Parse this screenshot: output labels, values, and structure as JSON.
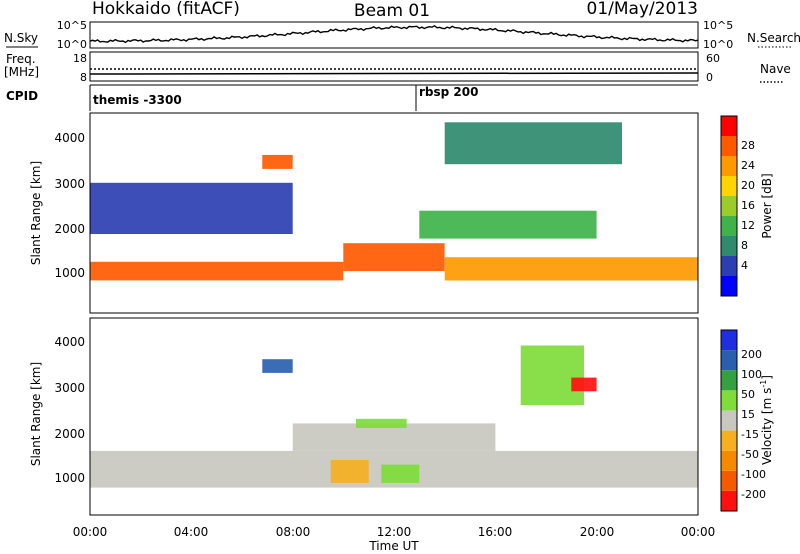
{
  "header": {
    "radar": "Hokkaido (fitACF)",
    "beam": "Beam 01",
    "date": "01/May/2013"
  },
  "side_labels": {
    "nsky": "N.Sky",
    "nsearch": "N.Search",
    "freq_line1": "Freq.",
    "freq_line2": "[MHz]",
    "nave": "Nave",
    "cpid": "CPID"
  },
  "noise_panel": {
    "left_ticks": [
      "10^5",
      "10^0"
    ],
    "right_ticks": [
      "10^5",
      "10^0"
    ]
  },
  "freq_panel": {
    "left_ticks": [
      "18",
      "8"
    ],
    "right_ticks": [
      "60",
      "0"
    ]
  },
  "cpid_panel": {
    "labels": [
      "themis -3300",
      "rbsp 200"
    ],
    "label_hours": [
      0,
      13.1
    ]
  },
  "power_panel": {
    "ylabel": "Slant Range [km]",
    "yticks": [
      "4000",
      "3000",
      "2000",
      "1000"
    ],
    "colorbar_label": "Power [dB]",
    "colorbar_ticks": [
      "28",
      "24",
      "20",
      "16",
      "12",
      "8",
      "4"
    ],
    "colorbar_colors": [
      "#0000ff",
      "#2c3fb2",
      "#2f8a6e",
      "#3fb34a",
      "#9ccc2c",
      "#ffd400",
      "#ff9900",
      "#ff5a00",
      "#ff0000"
    ]
  },
  "velocity_panel": {
    "ylabel": "Slant Range [km]",
    "yticks": [
      "4000",
      "3000",
      "2000",
      "1000"
    ],
    "colorbar_label": "Velocity [m s",
    "colorbar_label_exp": "-1",
    "colorbar_label_end": "]",
    "colorbar_ticks": [
      "200",
      "100",
      "50",
      "15",
      "-15",
      "-50",
      "-100",
      "-200"
    ],
    "colorbar_colors": [
      "#1f2ee0",
      "#2a5fb0",
      "#35a040",
      "#7fdc3a",
      "#c8c8c0",
      "#f5b020",
      "#f58a00",
      "#f55a00",
      "#ff1010"
    ]
  },
  "xaxis": {
    "label": "Time UT",
    "ticks": [
      "00:00",
      "04:00",
      "08:00",
      "12:00",
      "16:00",
      "20:00",
      "00:00"
    ]
  },
  "chart_data": {
    "type": "heatmap",
    "title": "Hokkaido (fitACF)  Beam 01  01/May/2013",
    "xlabel": "Time UT",
    "ylabel": "Slant Range [km]",
    "xlim": [
      "00:00",
      "24:00"
    ],
    "ylim": [
      200,
      4500
    ],
    "grid": false,
    "panels": [
      {
        "name": "Power [dB]",
        "zlim": [
          0,
          30
        ],
        "regions": [
          {
            "t0": 0.0,
            "t1": 10.0,
            "r0": 900,
            "r1": 1300,
            "value": 26
          },
          {
            "t0": 10.0,
            "t1": 14.0,
            "r0": 1100,
            "r1": 1700,
            "value": 24
          },
          {
            "t0": 14.0,
            "t1": 24.0,
            "r0": 900,
            "r1": 1400,
            "value": 20
          },
          {
            "t0": 13.0,
            "t1": 20.0,
            "r0": 1800,
            "r1": 2400,
            "value": 12
          },
          {
            "t0": 14.0,
            "t1": 21.0,
            "r0": 3400,
            "r1": 4300,
            "value": 8
          },
          {
            "t0": 6.8,
            "t1": 8.0,
            "r0": 3300,
            "r1": 3600,
            "value": 26
          },
          {
            "t0": 0.0,
            "t1": 8.0,
            "r0": 1900,
            "r1": 3000,
            "value": 6
          }
        ]
      },
      {
        "name": "Velocity [m s-1]",
        "zlim": [
          -200,
          200
        ],
        "regions": [
          {
            "t0": 0.0,
            "t1": 24.0,
            "r0": 800,
            "r1": 1600,
            "value": 0
          },
          {
            "t0": 8.0,
            "t1": 16.0,
            "r0": 1600,
            "r1": 2200,
            "value": 0
          },
          {
            "t0": 9.5,
            "t1": 11.0,
            "r0": 900,
            "r1": 1400,
            "value": -40
          },
          {
            "t0": 11.5,
            "t1": 13.0,
            "r0": 900,
            "r1": 1300,
            "value": 50
          },
          {
            "t0": 10.5,
            "t1": 12.5,
            "r0": 2100,
            "r1": 2300,
            "value": 60
          },
          {
            "t0": 17.0,
            "t1": 19.5,
            "r0": 2600,
            "r1": 3900,
            "value": 60
          },
          {
            "t0": 19.0,
            "t1": 20.0,
            "r0": 2900,
            "r1": 3200,
            "value": -200
          },
          {
            "t0": 6.8,
            "t1": 8.0,
            "r0": 3300,
            "r1": 3600,
            "value": 150
          }
        ]
      }
    ]
  }
}
